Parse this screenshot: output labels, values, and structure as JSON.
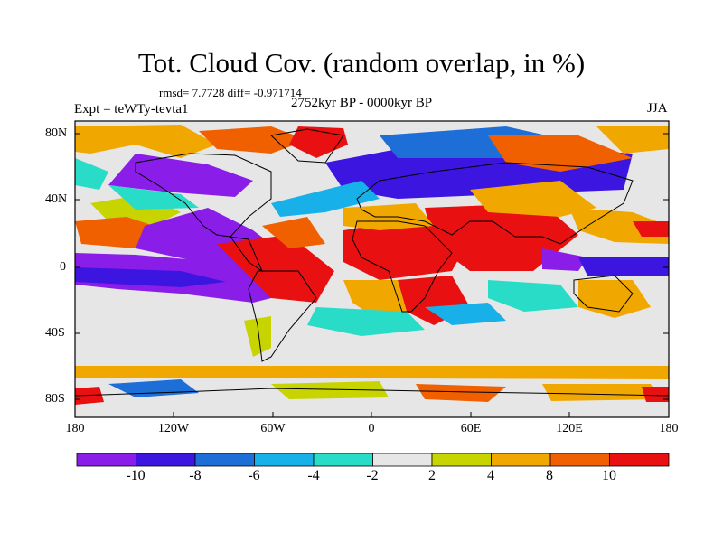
{
  "title": "Tot. Cloud Cov. (random overlap, in %)",
  "stats_line": "rmsd= 7.7728 diff= -0.971714",
  "period": "2752kyr BP - 0000kyr BP",
  "experiment": "Expt = teWTy-tevta1",
  "season": "JJA",
  "lat_labels": [
    "80N",
    "40N",
    "0",
    "40S",
    "80S"
  ],
  "lon_labels": [
    "180",
    "120W",
    "60W",
    "0",
    "60E",
    "120E",
    "180"
  ],
  "colorbar": {
    "labels": [
      "-10",
      "-8",
      "-6",
      "-4",
      "-2",
      "2",
      "4",
      "8",
      "10"
    ],
    "colors": [
      "#8a1ee8",
      "#3c16e0",
      "#1e6ed8",
      "#18b0e8",
      "#28dcc8",
      "#e6e6e6",
      "#c8d400",
      "#f0a800",
      "#f06000",
      "#e81010"
    ]
  }
}
